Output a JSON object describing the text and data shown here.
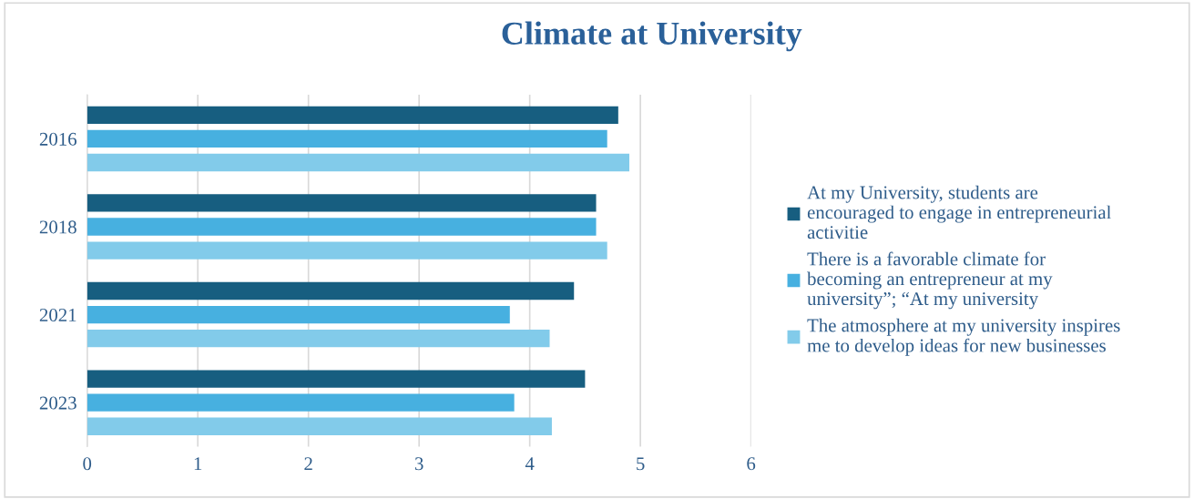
{
  "chart_data": {
    "type": "bar",
    "orientation": "horizontal",
    "title": "Climate at University",
    "categories": [
      "2016",
      "2018",
      "2021",
      "2023"
    ],
    "series": [
      {
        "name": "At my University, students are encouraged to engage in entrepreneurial activitie",
        "color": "#175e80",
        "values": [
          4.8,
          4.6,
          4.4,
          4.5
        ]
      },
      {
        "name": "There is a favorable climate for becoming an entrepreneur at my university”; “At my university",
        "color": "#47b0e0",
        "values": [
          4.7,
          4.6,
          3.82,
          3.86
        ]
      },
      {
        "name": "The atmosphere at my university inspires me to develop ideas for new businesses",
        "color": "#82cbea",
        "values": [
          4.9,
          4.7,
          4.18,
          4.2
        ]
      }
    ],
    "xlim": [
      0,
      6
    ],
    "xticks": [
      0,
      1,
      2,
      3,
      4,
      5,
      6
    ],
    "grid": "x",
    "legend": "right"
  }
}
